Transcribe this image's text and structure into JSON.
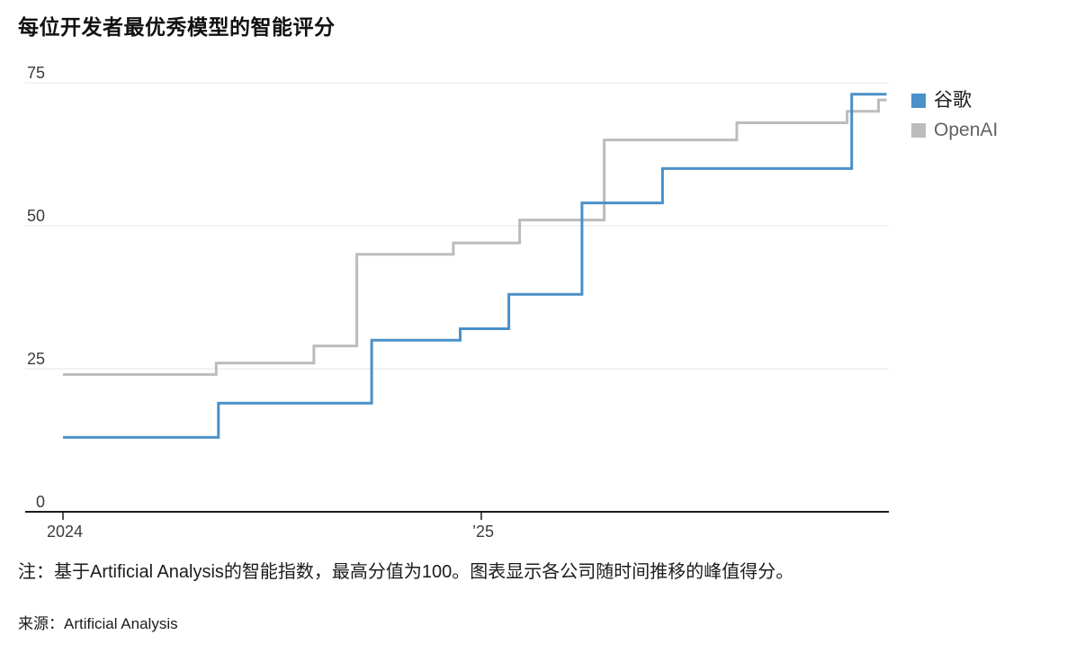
{
  "page": {
    "title": "每位开发者最优秀模型的智能评分",
    "note": "注：基于Artificial Analysis的智能指数，最高分值为100。图表显示各公司随时间推移的峰值得分。",
    "source": "来源：Artificial Analysis"
  },
  "chart_data": {
    "type": "line",
    "step": "after",
    "title": "每位开发者最优秀模型的智能评分",
    "xlabel": "",
    "ylabel": "",
    "ylim": [
      0,
      75
    ],
    "grid": "horizontal",
    "grid_y_values": [
      75,
      50,
      25
    ],
    "y_tick_labels": [
      75,
      50,
      25,
      0
    ],
    "x_ticks": [
      {
        "date": "2024-01-01",
        "label": "2024"
      },
      {
        "date": "2025-01-01",
        "label": "’25"
      }
    ],
    "x_start": "2024-01-01",
    "x_end": "2025-12-20",
    "legend_position": "right-top",
    "axis_color": "#1b1b1b",
    "gridline_color": "#e4e4e4",
    "tick_label_color": "#3c3c3c",
    "series": [
      {
        "name": "谷歌",
        "slug": "google",
        "color": "#4a90c9",
        "points": [
          {
            "date": "2024-01-01",
            "value": 13
          },
          {
            "date": "2024-05-15",
            "value": 19
          },
          {
            "date": "2024-09-27",
            "value": 30
          },
          {
            "date": "2024-12-13",
            "value": 32
          },
          {
            "date": "2025-01-25",
            "value": 38
          },
          {
            "date": "2025-03-28",
            "value": 54
          },
          {
            "date": "2025-06-07",
            "value": 60
          },
          {
            "date": "2025-11-20",
            "value": 73
          }
        ]
      },
      {
        "name": "OpenAI",
        "slug": "openai",
        "color": "#bcbcbc",
        "points": [
          {
            "date": "2024-01-01",
            "value": 24
          },
          {
            "date": "2024-05-13",
            "value": 26
          },
          {
            "date": "2024-08-07",
            "value": 29
          },
          {
            "date": "2024-09-14",
            "value": 45
          },
          {
            "date": "2024-12-07",
            "value": 47
          },
          {
            "date": "2025-02-04",
            "value": 51
          },
          {
            "date": "2025-04-17",
            "value": 65
          },
          {
            "date": "2025-08-11",
            "value": 68
          },
          {
            "date": "2025-11-16",
            "value": 70
          },
          {
            "date": "2025-12-13",
            "value": 72
          }
        ]
      }
    ]
  }
}
